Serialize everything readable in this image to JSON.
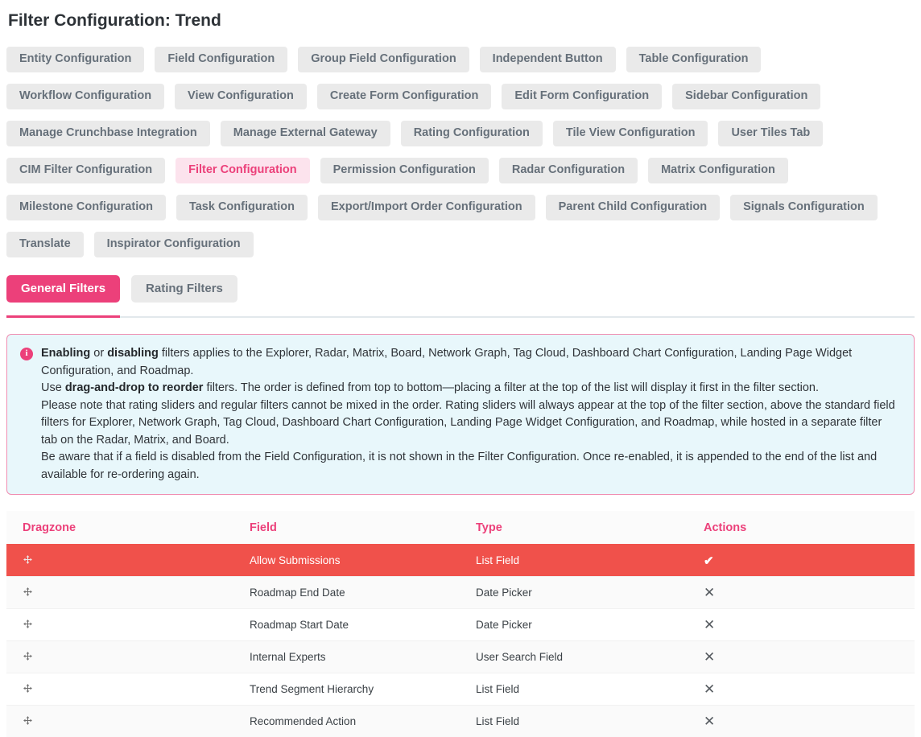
{
  "page": {
    "title": "Filter Configuration: Trend"
  },
  "colors": {
    "accent_pink": "#EC407A",
    "active_nav_bg": "#FCE3ED",
    "pill_bg": "#EAEAEA",
    "pill_text": "#66707A",
    "info_bg": "#E8F7FB",
    "info_border": "#F08CB0",
    "active_row_red": "#F0514B"
  },
  "nav": {
    "active_item": "Filter Configuration",
    "rows": [
      [
        "Entity Configuration",
        "Field Configuration",
        "Group Field Configuration",
        "Independent Button",
        "Table Configuration"
      ],
      [
        "Workflow Configuration",
        "View Configuration",
        "Create Form Configuration",
        "Edit Form Configuration",
        "Sidebar Configuration"
      ],
      [
        "Manage Crunchbase Integration",
        "Manage External Gateway",
        "Rating Configuration",
        "Tile View Configuration",
        "User Tiles Tab"
      ],
      [
        "CIM Filter Configuration",
        "Filter Configuration",
        "Permission Configuration",
        "Radar Configuration",
        "Matrix Configuration"
      ],
      [
        "Milestone Configuration",
        "Task Configuration",
        "Export/Import Order Configuration",
        "Parent Child Configuration",
        "Signals Configuration"
      ],
      [
        "Translate",
        "Inspirator Configuration"
      ]
    ]
  },
  "tabs": {
    "items": [
      {
        "label": "General Filters",
        "active": true
      },
      {
        "label": "Rating Filters",
        "active": false
      }
    ]
  },
  "info_box": {
    "icon": "info-icon",
    "paragraphs": [
      {
        "segments": [
          {
            "text": "Enabling",
            "bold": true
          },
          {
            "text": " or ",
            "bold": false
          },
          {
            "text": "disabling",
            "bold": true
          },
          {
            "text": " filters applies to the Explorer, Radar, Matrix, Board, Network Graph, Tag Cloud, Dashboard Chart Configuration, Landing Page Widget Configuration, and Roadmap.",
            "bold": false
          }
        ]
      },
      {
        "segments": [
          {
            "text": "Use ",
            "bold": false
          },
          {
            "text": "drag-and-drop to reorder",
            "bold": true
          },
          {
            "text": " filters. The order is defined from top to bottom—placing a filter at the top of the list will display it first in the filter section.",
            "bold": false
          }
        ]
      },
      {
        "segments": [
          {
            "text": "Please note that rating sliders and regular filters cannot be mixed in the order. Rating sliders will always appear at the top of the filter section, above the standard field filters for Explorer, Network Graph, Tag Cloud, Dashboard Chart Configuration, Landing Page Widget Configuration, and Roadmap, while hosted in a separate filter tab on the Radar, Matrix, and Board.",
            "bold": false
          }
        ]
      },
      {
        "segments": [
          {
            "text": "Be aware that if a field is disabled from the Field Configuration, it is not shown in the Filter Configuration. Once re-enabled, it is appended to the end of the list and available for re-ordering again.",
            "bold": false
          }
        ]
      }
    ]
  },
  "table": {
    "columns": [
      "Dragzone",
      "Field",
      "Type",
      "Actions"
    ],
    "rows": [
      {
        "field": "Allow Submissions",
        "type": "List Field",
        "action_icon": "check",
        "state": "active"
      },
      {
        "field": "Roadmap End Date",
        "type": "Date Picker",
        "action_icon": "cross",
        "state": "normal"
      },
      {
        "field": "Roadmap Start Date",
        "type": "Date Picker",
        "action_icon": "cross",
        "state": "normal"
      },
      {
        "field": "Internal Experts",
        "type": "User Search Field",
        "action_icon": "cross",
        "state": "normal"
      },
      {
        "field": "Trend Segment Hierarchy",
        "type": "List Field",
        "action_icon": "cross",
        "state": "normal"
      },
      {
        "field": "Recommended Action",
        "type": "List Field",
        "action_icon": "cross",
        "state": "normal"
      }
    ]
  },
  "glyphs": {
    "check": "✔",
    "cross": "✕",
    "info": "i"
  }
}
